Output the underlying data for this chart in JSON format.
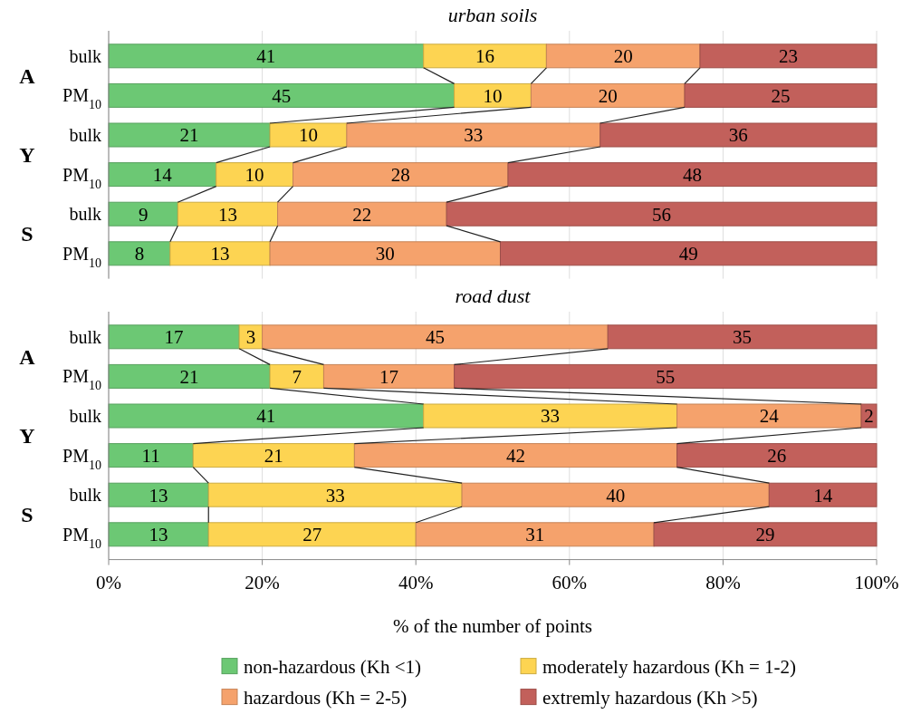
{
  "chart_data": [
    {
      "type": "bar",
      "orientation": "horizontal",
      "stacked": true,
      "title": "urban soils",
      "categories": [
        "bulk",
        "PM$_{10}$",
        "bulk",
        "PM$_{10}$",
        "bulk",
        "PM$_{10}$"
      ],
      "annotations": [
        "A",
        "Y",
        "S"
      ],
      "xlim": [
        0,
        100
      ],
      "xticks": [
        0,
        20,
        40,
        60,
        80,
        100
      ],
      "grid": "x",
      "tick_labels": "y",
      "data_labels": true,
      "series": [
        {
          "color": "#6cc874",
          "values": [
            41,
            45,
            21,
            14,
            9,
            8
          ]
        },
        {
          "color": "#fdd452",
          "values": [
            16,
            10,
            10,
            10,
            13,
            13
          ]
        },
        {
          "color": "#f5a26c",
          "values": [
            20,
            20,
            33,
            28,
            22,
            30
          ]
        },
        {
          "color": "#c2605b",
          "values": [
            23,
            25,
            36,
            48,
            56,
            49
          ]
        }
      ]
    },
    {
      "type": "bar",
      "orientation": "horizontal",
      "stacked": true,
      "title": "road dust",
      "xlabel": "% of the number of points",
      "categories": [
        "bulk",
        "PM$_{10}$",
        "bulk",
        "PM$_{10}$",
        "bulk",
        "PM$_{10}$"
      ],
      "annotations": [
        "A",
        "Y",
        "S"
      ],
      "xlim": [
        0,
        100
      ],
      "xticks": [
        {
          "value": 0,
          "label": "0%"
        },
        {
          "value": 20,
          "label": "20%"
        },
        {
          "value": 40,
          "label": "40%"
        },
        {
          "value": 60,
          "label": "60%"
        },
        {
          "value": 80,
          "label": "80%"
        },
        {
          "value": 100,
          "label": "100%"
        }
      ],
      "grid": "x",
      "data_labels": true,
      "legend": "bottom",
      "series": [
        {
          "name": "non-hazardous (Kh <1)",
          "color": "#6cc874",
          "values": [
            17,
            21,
            41,
            11,
            13,
            13
          ]
        },
        {
          "name": "moderately hazardous (Kh = 1-2)",
          "color": "#fdd452",
          "values": [
            3,
            7,
            33,
            21,
            33,
            27
          ]
        },
        {
          "name": "hazardous (Kh = 2-5)",
          "color": "#f5a26c",
          "values": [
            45,
            17,
            24,
            42,
            40,
            31
          ]
        },
        {
          "name": "extremly hazardous (Kh >5)",
          "color": "#c2605b",
          "values": [
            35,
            55,
            2,
            26,
            14,
            29
          ]
        }
      ]
    }
  ]
}
